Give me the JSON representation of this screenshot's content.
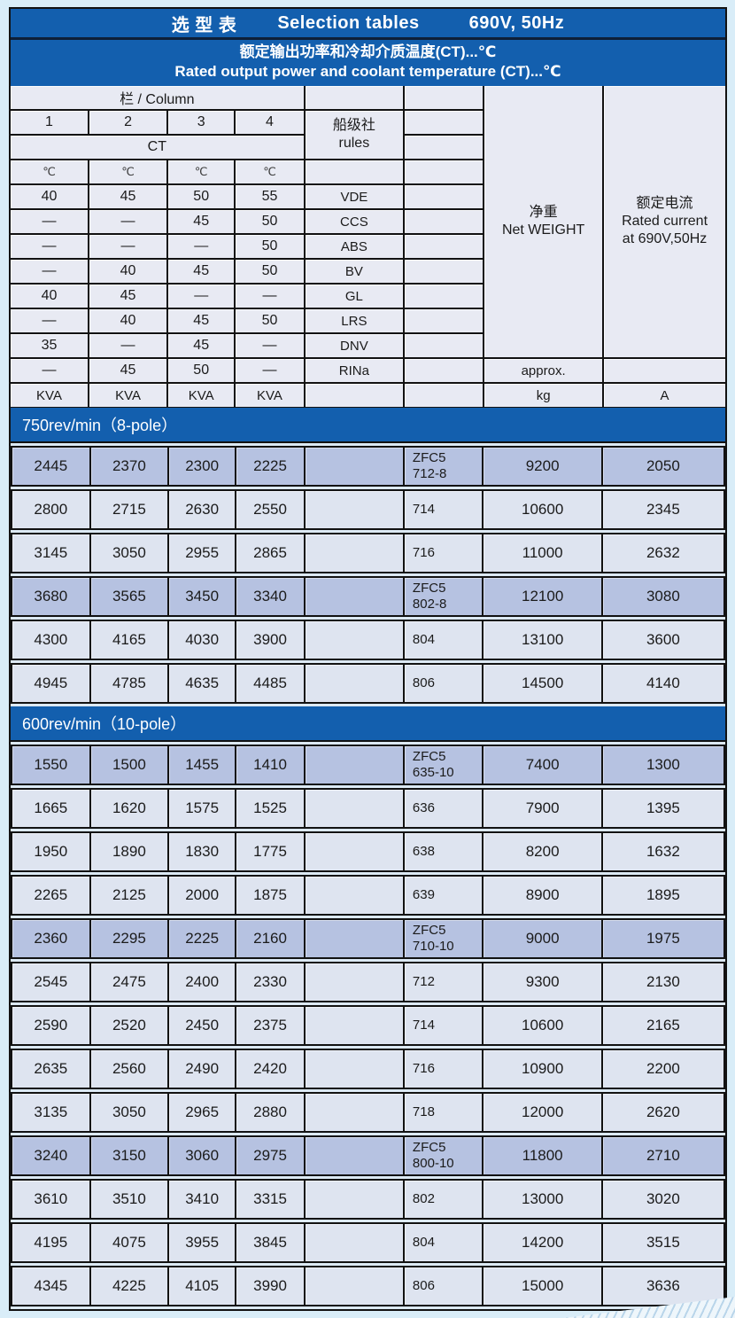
{
  "colors": {
    "header_blue": "#135fae",
    "page_bg": "#d9edf8",
    "header_cell_bg": "#e8eaf3",
    "row_light": "#dee4f0",
    "row_highlight": "#b6c2e1",
    "border_black": "#121212",
    "title_text": "#ffffff"
  },
  "title_bar": {
    "cn": "选 型 表",
    "en": "Selection tables",
    "spec": "690V, 50Hz"
  },
  "subtitle_bar": {
    "cn": "额定输出功率和冷却介质温度(CT)...℃",
    "en": "Rated output power and coolant temperature (CT)...℃"
  },
  "header_table": {
    "column_label": "栏 / Column",
    "column_numbers": [
      "1",
      "2",
      "3",
      "4"
    ],
    "ct_label": "CT",
    "unit_row": [
      "℃",
      "℃",
      "℃",
      "℃"
    ],
    "rules_label_cn": "船级社",
    "rules_label_en": "rules",
    "net_weight_cn": "净重",
    "net_weight_en": "Net WEIGHT",
    "rated_current_cn": "额定电流",
    "rated_current_en1": "Rated current",
    "rated_current_en2": "at 690V,50Hz",
    "approx_label": "approx.",
    "kg_label": "kg",
    "ampere_label": "A",
    "kva_row": [
      "KVA",
      "KVA",
      "KVA",
      "KVA"
    ],
    "society_rows": [
      {
        "temps": [
          "40",
          "45",
          "50",
          "55"
        ],
        "society": "VDE"
      },
      {
        "temps": [
          "—",
          "—",
          "45",
          "50"
        ],
        "society": "CCS"
      },
      {
        "temps": [
          "—",
          "—",
          "—",
          "50"
        ],
        "society": "ABS"
      },
      {
        "temps": [
          "—",
          "40",
          "45",
          "50"
        ],
        "society": "BV"
      },
      {
        "temps": [
          "40",
          "45",
          "—",
          "—"
        ],
        "society": "GL"
      },
      {
        "temps": [
          "—",
          "40",
          "45",
          "50"
        ],
        "society": "LRS"
      },
      {
        "temps": [
          "35",
          "—",
          "45",
          "—"
        ],
        "society": "DNV"
      },
      {
        "temps": [
          "—",
          "45",
          "50",
          "—"
        ],
        "society": "RINa"
      }
    ]
  },
  "sections": [
    {
      "heading": "750rev/min（8-pole）",
      "rows": [
        {
          "kva": [
            "2445",
            "2370",
            "2300",
            "2225"
          ],
          "model": [
            "ZFC5",
            "712-8"
          ],
          "weight": "9200",
          "current": "2050",
          "highlight": true
        },
        {
          "kva": [
            "2800",
            "2715",
            "2630",
            "2550"
          ],
          "model": [
            "714"
          ],
          "weight": "10600",
          "current": "2345",
          "highlight": false
        },
        {
          "kva": [
            "3145",
            "3050",
            "2955",
            "2865"
          ],
          "model": [
            "716"
          ],
          "weight": "11000",
          "current": "2632",
          "highlight": false
        },
        {
          "kva": [
            "3680",
            "3565",
            "3450",
            "3340"
          ],
          "model": [
            "ZFC5",
            "802-8"
          ],
          "weight": "12100",
          "current": "3080",
          "highlight": true
        },
        {
          "kva": [
            "4300",
            "4165",
            "4030",
            "3900"
          ],
          "model": [
            "804"
          ],
          "weight": "13100",
          "current": "3600",
          "highlight": false
        },
        {
          "kva": [
            "4945",
            "4785",
            "4635",
            "4485"
          ],
          "model": [
            "806"
          ],
          "weight": "14500",
          "current": "4140",
          "highlight": false
        }
      ]
    },
    {
      "heading": "600rev/min（10-pole）",
      "rows": [
        {
          "kva": [
            "1550",
            "1500",
            "1455",
            "1410"
          ],
          "model": [
            "ZFC5",
            "635-10"
          ],
          "weight": "7400",
          "current": "1300",
          "highlight": true
        },
        {
          "kva": [
            "1665",
            "1620",
            "1575",
            "1525"
          ],
          "model": [
            "636"
          ],
          "weight": "7900",
          "current": "1395",
          "highlight": false
        },
        {
          "kva": [
            "1950",
            "1890",
            "1830",
            "1775"
          ],
          "model": [
            "638"
          ],
          "weight": "8200",
          "current": "1632",
          "highlight": false
        },
        {
          "kva": [
            "2265",
            "2125",
            "2000",
            "1875"
          ],
          "model": [
            "639"
          ],
          "weight": "8900",
          "current": "1895",
          "highlight": false
        },
        {
          "kva": [
            "2360",
            "2295",
            "2225",
            "2160"
          ],
          "model": [
            "ZFC5",
            "710-10"
          ],
          "weight": "9000",
          "current": "1975",
          "highlight": true
        },
        {
          "kva": [
            "2545",
            "2475",
            "2400",
            "2330"
          ],
          "model": [
            "712"
          ],
          "weight": "9300",
          "current": "2130",
          "highlight": false
        },
        {
          "kva": [
            "2590",
            "2520",
            "2450",
            "2375"
          ],
          "model": [
            "714"
          ],
          "weight": "10600",
          "current": "2165",
          "highlight": false
        },
        {
          "kva": [
            "2635",
            "2560",
            "2490",
            "2420"
          ],
          "model": [
            "716"
          ],
          "weight": "10900",
          "current": "2200",
          "highlight": false
        },
        {
          "kva": [
            "3135",
            "3050",
            "2965",
            "2880"
          ],
          "model": [
            "718"
          ],
          "weight": "12000",
          "current": "2620",
          "highlight": false
        },
        {
          "kva": [
            "3240",
            "3150",
            "3060",
            "2975"
          ],
          "model": [
            "ZFC5",
            "800-10"
          ],
          "weight": "11800",
          "current": "2710",
          "highlight": true
        },
        {
          "kva": [
            "3610",
            "3510",
            "3410",
            "3315"
          ],
          "model": [
            "802"
          ],
          "weight": "13000",
          "current": "3020",
          "highlight": false
        },
        {
          "kva": [
            "4195",
            "4075",
            "3955",
            "3845"
          ],
          "model": [
            "804"
          ],
          "weight": "14200",
          "current": "3515",
          "highlight": false
        },
        {
          "kva": [
            "4345",
            "4225",
            "4105",
            "3990"
          ],
          "model": [
            "806"
          ],
          "weight": "15000",
          "current": "3636",
          "highlight": false
        }
      ]
    }
  ]
}
